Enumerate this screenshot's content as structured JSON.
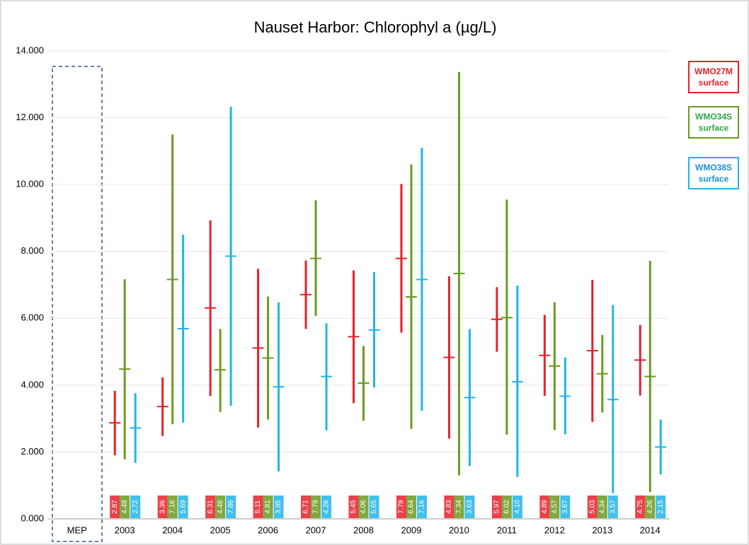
{
  "chart_data": {
    "type": "range",
    "title": "Nauset Harbor: Chlorophyl a (µg/L)",
    "categories": [
      "MEP",
      "2003",
      "2004",
      "2005",
      "2006",
      "2007",
      "2008",
      "2009",
      "2010",
      "2011",
      "2012",
      "2013",
      "2014"
    ],
    "ylim": [
      0,
      14
    ],
    "yticks": [
      {
        "value": 0,
        "label": "0.000"
      },
      {
        "value": 2,
        "label": "2.000"
      },
      {
        "value": 4,
        "label": "4.000"
      },
      {
        "value": 6,
        "label": "6.000"
      },
      {
        "value": 8,
        "label": "8.000"
      },
      {
        "value": 10,
        "label": "10.000"
      },
      {
        "value": 12,
        "label": "12.000"
      },
      {
        "value": 14,
        "label": "14.000"
      }
    ],
    "grid": true,
    "legend": "right",
    "series": [
      {
        "name": "WMO27M surface",
        "color": "#e8202a",
        "values": [
          null,
          2.87,
          3.36,
          6.31,
          5.11,
          6.71,
          5.45,
          7.79,
          4.83,
          5.97,
          4.89,
          5.03,
          4.75
        ],
        "value_labels": [
          null,
          "2.87",
          "3.36",
          "6.31",
          "5.11",
          "6.71",
          "5.45",
          "7.79",
          "4.83",
          "5.97",
          "4.89",
          "5.03",
          "4.75"
        ],
        "low": [
          null,
          1.9,
          2.48,
          3.68,
          2.73,
          5.68,
          3.46,
          5.57,
          2.4,
          5.0,
          3.68,
          2.9,
          3.69
        ],
        "high": [
          null,
          3.83,
          4.23,
          8.93,
          7.48,
          7.73,
          7.43,
          10.02,
          7.26,
          6.93,
          6.1,
          7.15,
          5.8
        ]
      },
      {
        "name": "WMO34S surface",
        "color": "#6a9a1f",
        "values": [
          null,
          4.48,
          7.16,
          4.46,
          4.81,
          7.79,
          4.06,
          6.64,
          7.34,
          6.02,
          4.57,
          4.34,
          4.26
        ],
        "value_labels": [
          null,
          "4.48",
          "7.16",
          "4.46",
          "4.81",
          "7.79",
          "4.06",
          "6.64",
          "7.34",
          "6.02",
          "4.57",
          "4.34",
          "4.26"
        ],
        "low": [
          null,
          1.78,
          2.83,
          3.2,
          2.97,
          6.07,
          2.94,
          2.69,
          1.3,
          2.52,
          2.66,
          3.18,
          0.8
        ],
        "high": [
          null,
          7.17,
          11.5,
          5.68,
          6.65,
          9.53,
          5.17,
          10.6,
          13.37,
          9.55,
          6.48,
          5.5,
          7.72
        ]
      },
      {
        "name": "WMO38S surface",
        "color": "#22b4e8",
        "values": [
          null,
          2.72,
          5.69,
          7.86,
          3.95,
          4.26,
          5.65,
          7.16,
          3.63,
          4.1,
          3.67,
          3.57,
          2.15
        ],
        "value_labels": [
          null,
          "2.72",
          "5.69",
          "7.86",
          "3.95",
          "4.26",
          "5.65",
          "7.16",
          "3.63",
          "4.10",
          "3.67",
          "3.57",
          "2.15"
        ],
        "low": [
          null,
          1.67,
          2.88,
          3.38,
          1.42,
          2.65,
          3.93,
          3.23,
          1.58,
          1.25,
          2.53,
          0.77,
          1.33
        ],
        "high": [
          null,
          3.76,
          8.5,
          12.33,
          6.48,
          5.85,
          7.38,
          11.1,
          5.68,
          6.98,
          4.83,
          6.4,
          2.97
        ]
      }
    ]
  }
}
